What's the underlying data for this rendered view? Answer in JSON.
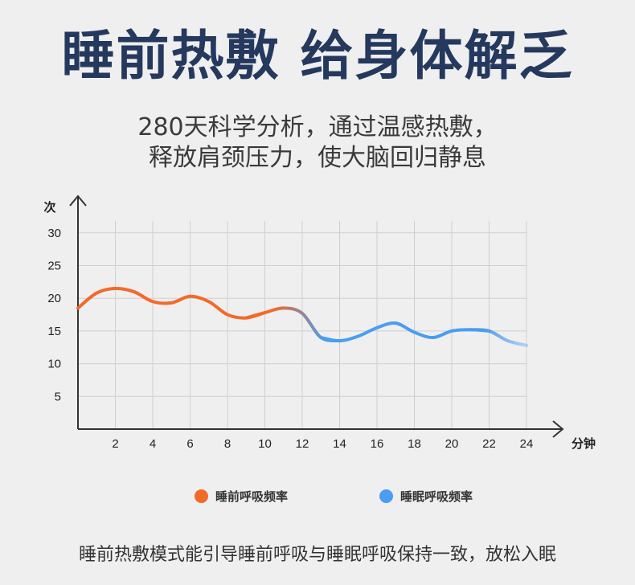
{
  "header": {
    "title": "睡前热敷 给身体解乏",
    "subtitle_line1": "280天科学分析，通过温感热敷，",
    "subtitle_line2": "释放肩颈压力，使大脑回归静息"
  },
  "chart_data": {
    "type": "line",
    "xlabel": "分钟",
    "ylabel": "次",
    "xlim": [
      0,
      24
    ],
    "ylim": [
      0,
      30
    ],
    "x_ticks": [
      2,
      4,
      6,
      8,
      10,
      12,
      14,
      16,
      18,
      20,
      22,
      24
    ],
    "y_ticks": [
      5,
      10,
      15,
      20,
      25,
      30
    ],
    "grid": true,
    "legend_position": "bottom",
    "series": [
      {
        "name": "睡前呼吸频率",
        "color": "#f26a2a",
        "x": [
          0,
          1,
          2,
          3,
          4,
          5,
          6,
          7,
          8,
          9,
          10,
          11,
          12
        ],
        "y": [
          18.5,
          20.8,
          21.5,
          21,
          19.5,
          19.3,
          20.3,
          19.5,
          17.5,
          17,
          17.8,
          18.5,
          17.7
        ]
      },
      {
        "name": "睡眠呼吸频率",
        "color": "#4a9df0",
        "x": [
          12,
          13,
          14,
          15,
          16,
          17,
          18,
          19,
          20,
          21,
          22,
          23,
          24
        ],
        "y": [
          17.7,
          14,
          13.5,
          14.2,
          15.5,
          16.2,
          14.8,
          14,
          15,
          15.2,
          15,
          13.5,
          12.8
        ]
      }
    ]
  },
  "footer": {
    "text": "睡前热敷模式能引导睡前呼吸与睡眠呼吸保持一致，放松入眠"
  }
}
